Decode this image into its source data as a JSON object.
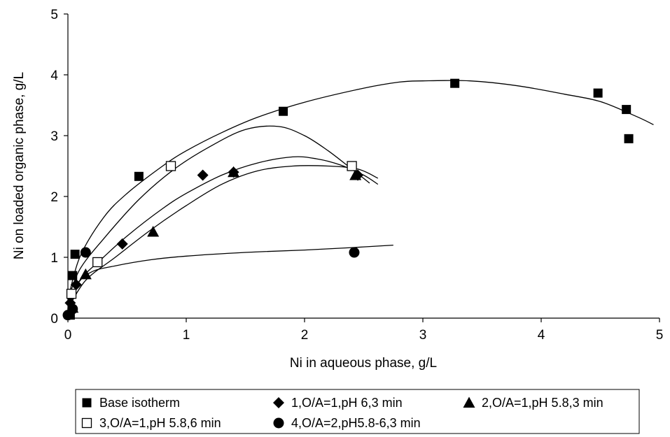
{
  "chart_data": {
    "type": "scatter",
    "title": "",
    "xlabel": "Ni in aqueous phase, g/L",
    "ylabel": "Ni on loaded organic phase, g/L",
    "xlim": [
      0,
      5
    ],
    "ylim": [
      0,
      5
    ],
    "xticks": [
      "0",
      "1",
      "2",
      "3",
      "4",
      "5"
    ],
    "yticks": [
      "0",
      "1",
      "2",
      "3",
      "4",
      "5"
    ],
    "grid": false,
    "legend_position": "bottom",
    "series": [
      {
        "name": "Base isotherm",
        "marker": "filled-square",
        "color": "#000000",
        "points": [
          [
            0.02,
            0.05
          ],
          [
            0.04,
            0.7
          ],
          [
            0.06,
            1.05
          ],
          [
            0.6,
            2.33
          ],
          [
            1.82,
            3.4
          ],
          [
            3.27,
            3.86
          ],
          [
            4.48,
            3.7
          ],
          [
            4.72,
            3.43
          ],
          [
            4.74,
            2.95
          ]
        ],
        "fit": [
          [
            0.0,
            0.3
          ],
          [
            0.1,
            1.0
          ],
          [
            0.3,
            1.65
          ],
          [
            0.5,
            2.05
          ],
          [
            0.8,
            2.5
          ],
          [
            1.0,
            2.75
          ],
          [
            1.3,
            3.05
          ],
          [
            1.6,
            3.3
          ],
          [
            2.0,
            3.55
          ],
          [
            2.5,
            3.78
          ],
          [
            2.8,
            3.88
          ],
          [
            3.0,
            3.9
          ],
          [
            3.4,
            3.9
          ],
          [
            3.8,
            3.82
          ],
          [
            4.2,
            3.68
          ],
          [
            4.5,
            3.56
          ],
          [
            4.8,
            3.32
          ],
          [
            4.95,
            3.18
          ]
        ]
      },
      {
        "name": "1,O/A=1,pH 6,3 min",
        "marker": "filled-diamond",
        "color": "#000000",
        "points": [
          [
            0.02,
            0.25
          ],
          [
            0.07,
            0.55
          ],
          [
            0.46,
            1.22
          ],
          [
            1.14,
            2.35
          ],
          [
            1.4,
            2.4
          ],
          [
            2.45,
            2.35
          ]
        ],
        "fit": [
          [
            0.0,
            0.2
          ],
          [
            0.1,
            0.62
          ],
          [
            0.3,
            1.0
          ],
          [
            0.5,
            1.35
          ],
          [
            0.8,
            1.8
          ],
          [
            1.0,
            2.05
          ],
          [
            1.3,
            2.35
          ],
          [
            1.6,
            2.55
          ],
          [
            1.9,
            2.65
          ],
          [
            2.1,
            2.62
          ],
          [
            2.3,
            2.52
          ],
          [
            2.5,
            2.35
          ],
          [
            2.62,
            2.2
          ]
        ]
      },
      {
        "name": "2,O/A=1,pH 5.8,3 min",
        "marker": "filled-triangle",
        "color": "#000000",
        "points": [
          [
            0.04,
            0.17
          ],
          [
            0.15,
            0.72
          ],
          [
            0.72,
            1.42
          ],
          [
            1.4,
            2.4
          ],
          [
            2.43,
            2.35
          ]
        ],
        "fit": [
          [
            0.0,
            0.15
          ],
          [
            0.15,
            0.62
          ],
          [
            0.4,
            1.0
          ],
          [
            0.7,
            1.45
          ],
          [
            1.0,
            1.85
          ],
          [
            1.3,
            2.2
          ],
          [
            1.6,
            2.42
          ],
          [
            1.9,
            2.5
          ],
          [
            2.2,
            2.5
          ],
          [
            2.45,
            2.45
          ],
          [
            2.62,
            2.3
          ]
        ]
      },
      {
        "name": "3,O/A=1,pH 5.8,6 min",
        "marker": "open-square",
        "color": "#000000",
        "points": [
          [
            0.03,
            0.4
          ],
          [
            0.25,
            0.92
          ],
          [
            0.87,
            2.5
          ],
          [
            2.4,
            2.5
          ]
        ],
        "fit": [
          [
            0.0,
            0.3
          ],
          [
            0.1,
            0.8
          ],
          [
            0.3,
            1.3
          ],
          [
            0.6,
            1.95
          ],
          [
            0.9,
            2.45
          ],
          [
            1.2,
            2.82
          ],
          [
            1.5,
            3.1
          ],
          [
            1.78,
            3.15
          ],
          [
            2.0,
            3.0
          ],
          [
            2.2,
            2.75
          ],
          [
            2.4,
            2.45
          ],
          [
            2.55,
            2.22
          ]
        ]
      },
      {
        "name": "4,O/A=2,pH5.8-6,3 min",
        "marker": "filled-circle",
        "color": "#000000",
        "points": [
          [
            0.0,
            0.05
          ],
          [
            0.04,
            0.15
          ],
          [
            0.15,
            1.08
          ],
          [
            2.42,
            1.08
          ]
        ],
        "fit": [
          [
            0.0,
            0.05
          ],
          [
            0.08,
            0.55
          ],
          [
            0.2,
            0.76
          ],
          [
            0.4,
            0.86
          ],
          [
            0.7,
            0.96
          ],
          [
            1.0,
            1.02
          ],
          [
            1.5,
            1.08
          ],
          [
            2.0,
            1.12
          ],
          [
            2.4,
            1.16
          ],
          [
            2.75,
            1.2
          ]
        ]
      }
    ]
  }
}
